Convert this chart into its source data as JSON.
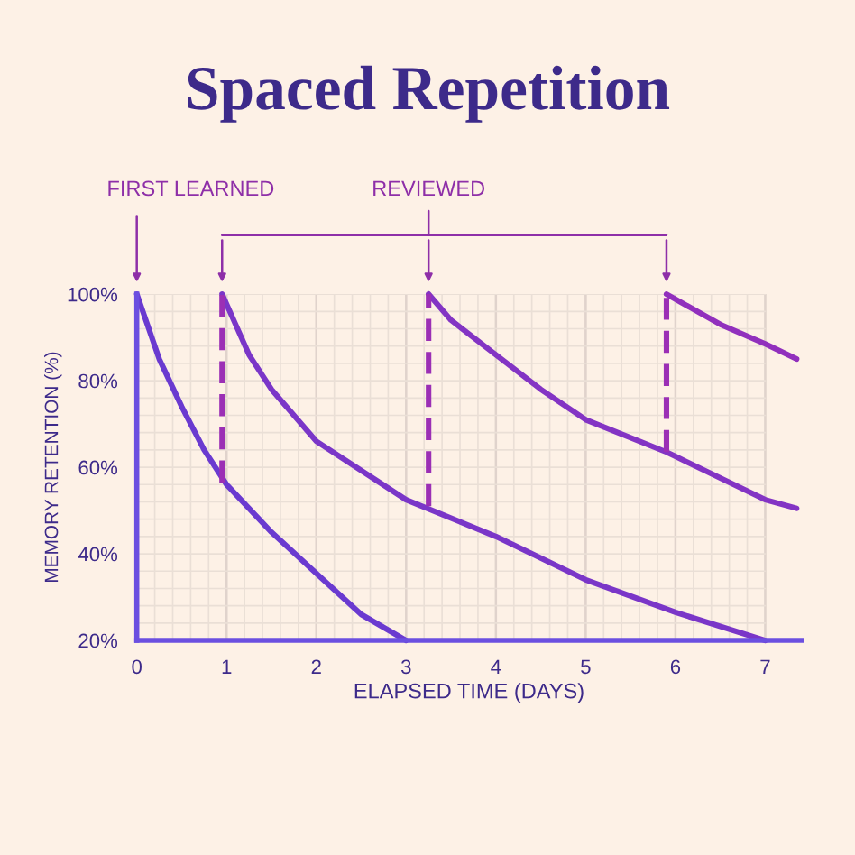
{
  "chart_data": {
    "type": "line",
    "title": "Spaced Repetition",
    "xlabel": "ELAPSED TIME (DAYS)",
    "ylabel": "MEMORY RETENTION (%)",
    "annotations": [
      "FIRST LEARNED",
      "REVIEWED"
    ],
    "xlim": [
      0,
      7.4
    ],
    "xticks": [
      0,
      1,
      2,
      3,
      4,
      5,
      6,
      7
    ],
    "ylim": [
      20,
      100
    ],
    "yticks": [
      {
        "value": 20,
        "label": "20%"
      },
      {
        "value": 40,
        "label": "40%"
      },
      {
        "value": 60,
        "label": "60%"
      },
      {
        "value": 80,
        "label": "80%"
      },
      {
        "value": 100,
        "label": "100%"
      }
    ],
    "grid": true,
    "legend": false,
    "marker": "none",
    "series": [
      {
        "color": "#6a3ad0",
        "line_style": "solid",
        "x": [
          0,
          0.25,
          0.5,
          0.75,
          1,
          1.5,
          2,
          2.5,
          3
        ],
        "values": [
          100,
          85,
          74,
          64,
          56,
          45,
          35.5,
          26,
          20
        ]
      },
      {
        "color": "#7a36c8",
        "line_style": "solid",
        "x": [
          0.95,
          1.25,
          1.5,
          2,
          3,
          4,
          5,
          6,
          7
        ],
        "values": [
          100,
          86,
          78,
          66,
          52.5,
          44,
          34,
          26.5,
          20
        ]
      },
      {
        "color": "#8334c4",
        "line_style": "solid",
        "x": [
          3.25,
          3.5,
          4,
          4.5,
          5,
          5.9,
          6,
          7,
          7.35
        ],
        "values": [
          100,
          94,
          86,
          78,
          71,
          63.5,
          62.5,
          52.5,
          50.5
        ]
      },
      {
        "color": "#9130bd",
        "line_style": "solid",
        "x": [
          5.9,
          6.5,
          7,
          7.35
        ],
        "values": [
          100,
          93,
          88.5,
          85
        ]
      },
      {
        "color": "#9b2fb5",
        "line_style": "dashed",
        "x": [
          0.95,
          0.95
        ],
        "values": [
          56.5,
          100
        ]
      },
      {
        "color": "#9b2fb5",
        "line_style": "dashed",
        "x": [
          3.25,
          3.25
        ],
        "values": [
          51,
          100
        ]
      },
      {
        "color": "#9b2fb5",
        "line_style": "dashed",
        "x": [
          5.9,
          5.9
        ],
        "values": [
          63.5,
          100
        ]
      }
    ]
  }
}
